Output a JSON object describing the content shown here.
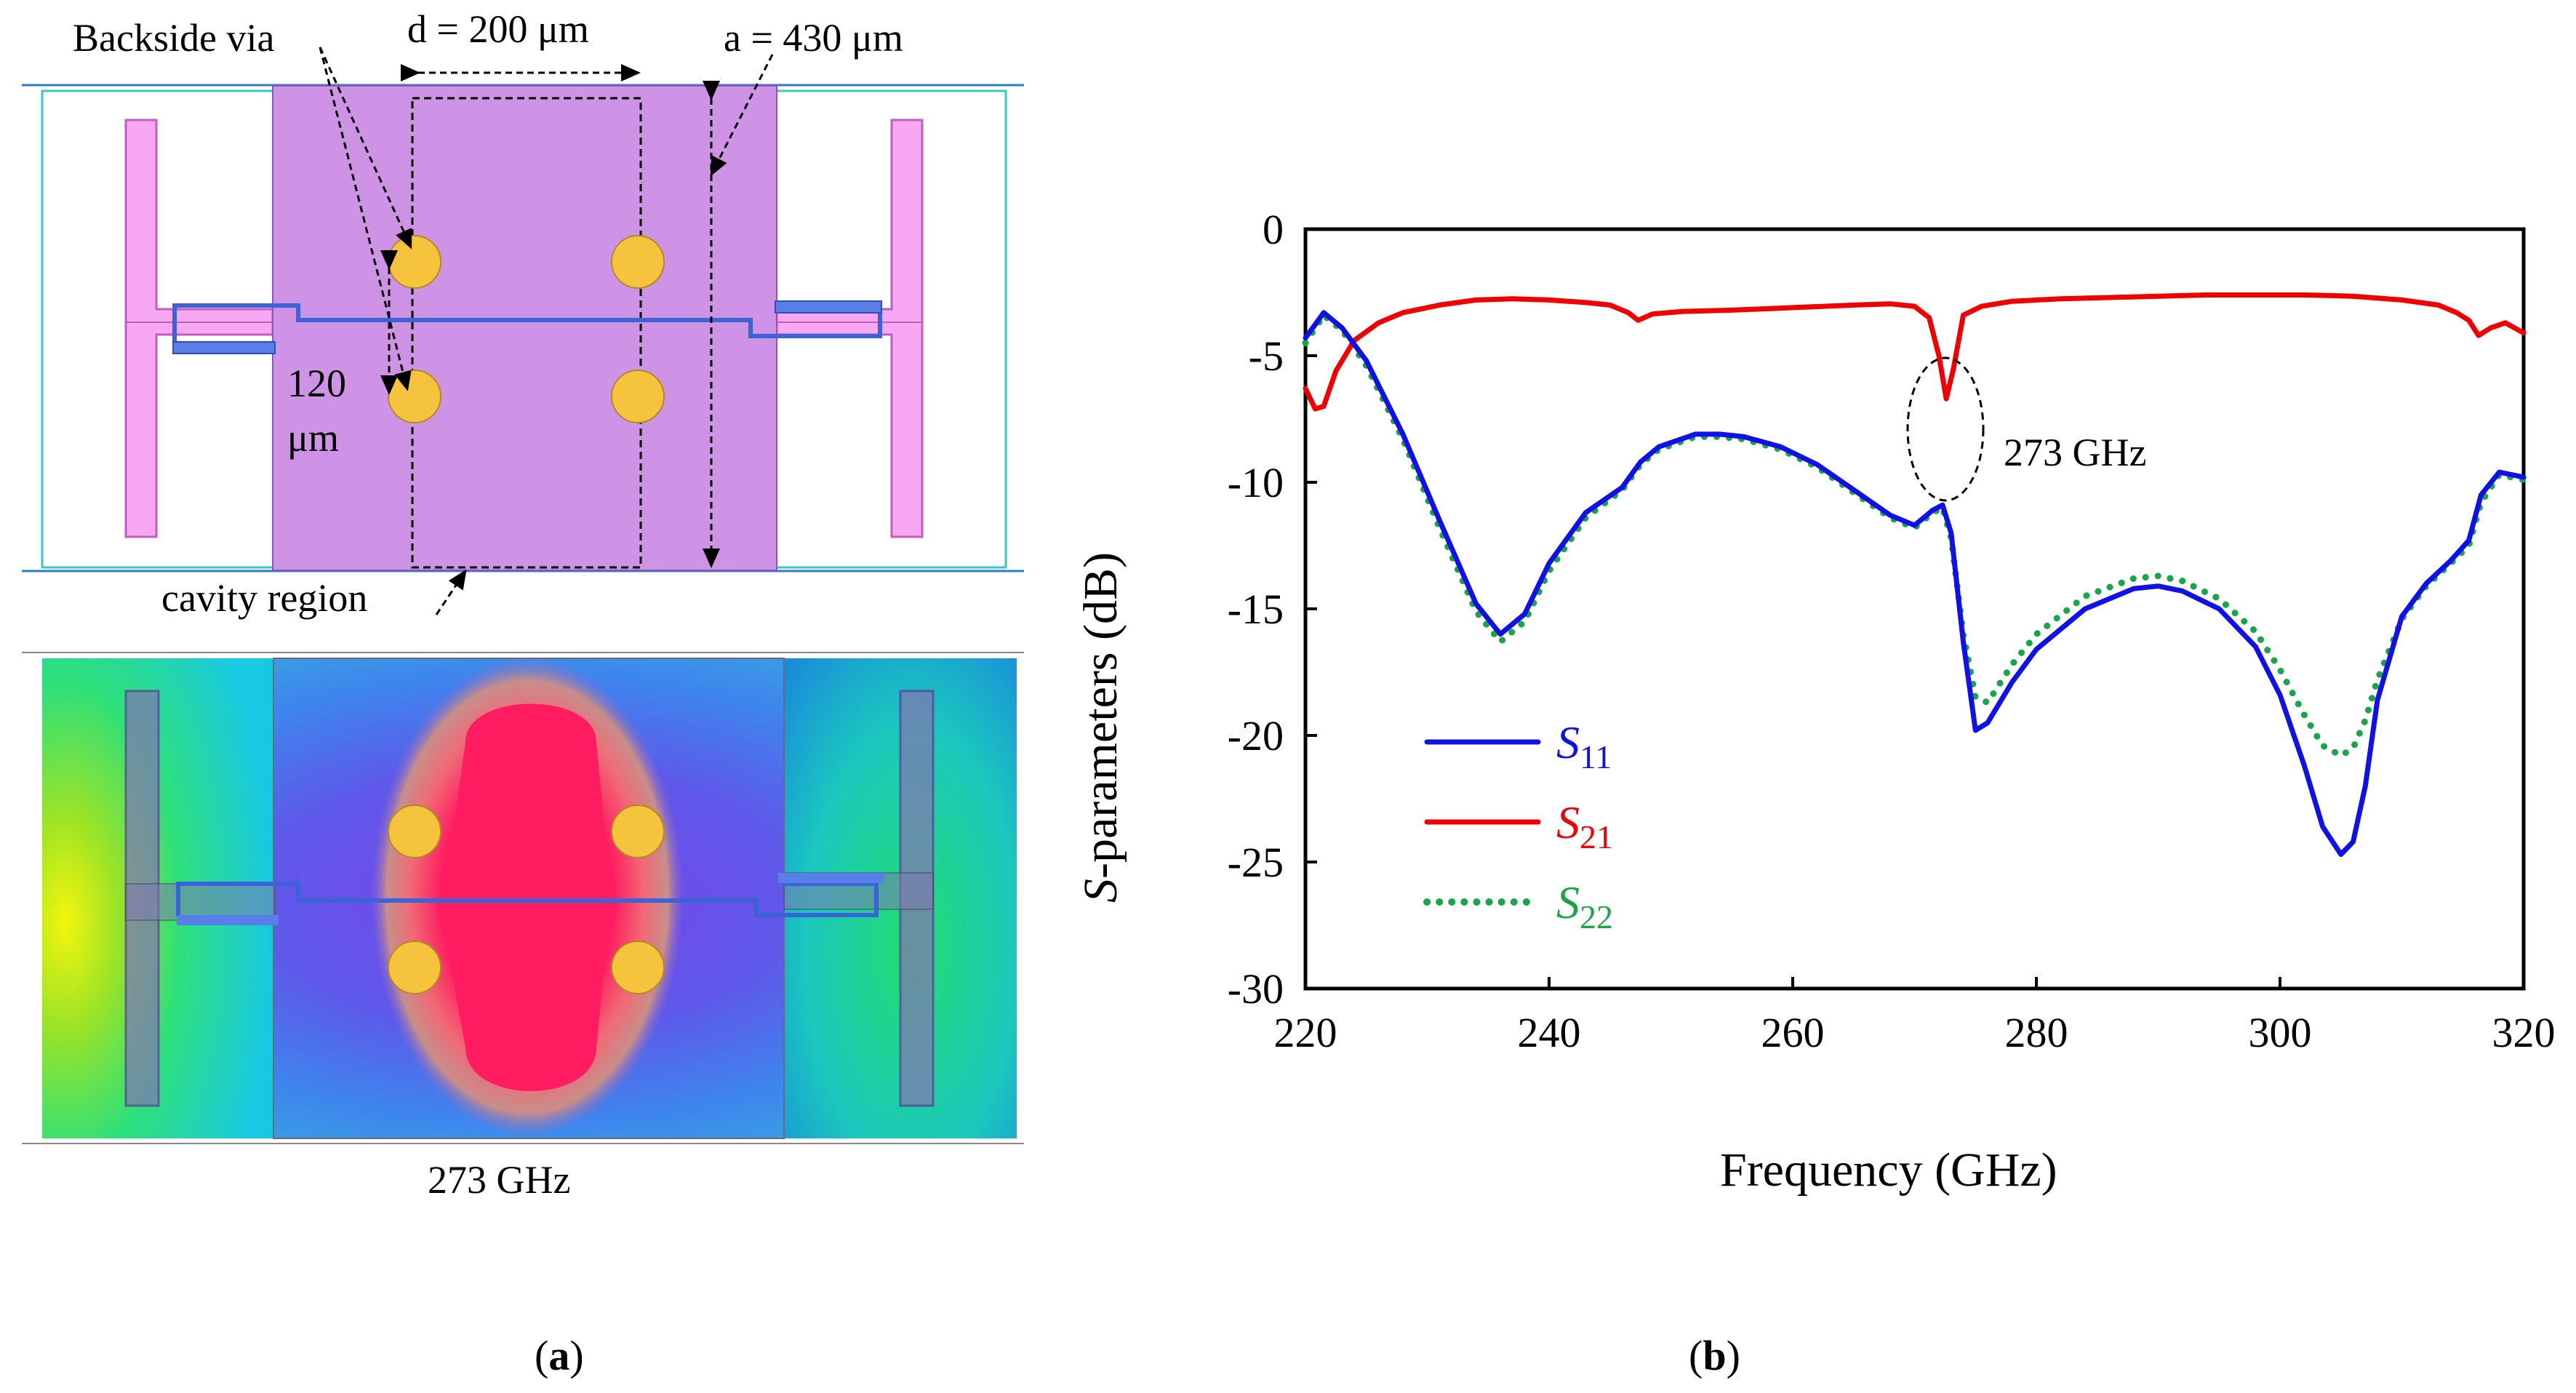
{
  "panel_a": {
    "label": "a",
    "annotations": {
      "backside_via": "Backside via",
      "d_dim": "d = 200 μm",
      "a_dim": "a = 430 μm",
      "via_spacing_value": "120",
      "via_spacing_unit": "μm",
      "cavity": "cavity region",
      "field_freq": "273 GHz"
    }
  },
  "panel_b": {
    "label": "b"
  },
  "chart_data": {
    "type": "line",
    "xlabel": "Frequency  (GHz)",
    "ylabel_italic": "S",
    "ylabel_rest": "-parameters (dB)",
    "xlim": [
      220,
      320
    ],
    "ylim": [
      -30,
      0
    ],
    "xticks": [
      220,
      240,
      260,
      280,
      300,
      320
    ],
    "yticks": [
      0,
      -5,
      -10,
      -15,
      -20,
      -25,
      -30
    ],
    "grid": false,
    "legend_position": "lower-left",
    "annotation": {
      "text": "273  GHz",
      "x": 272.8,
      "y": -7.5
    },
    "series": [
      {
        "name": "S11",
        "sym": "S",
        "sub": "11",
        "color": "#1010e8",
        "style": "solid",
        "x": [
          220,
          221.5,
          223,
          225,
          228,
          231,
          234,
          236,
          238,
          240,
          243,
          246,
          247.5,
          249,
          252,
          254,
          256,
          259,
          262,
          265,
          268,
          270,
          271.5,
          272.3,
          273,
          274,
          275,
          276,
          278,
          280,
          284,
          288,
          290,
          292,
          295,
          298,
          300,
          302,
          303.5,
          305,
          306,
          307,
          308,
          310,
          312,
          314,
          315.5,
          316.5,
          318,
          320
        ],
        "y": [
          -4.3,
          -3.3,
          -3.9,
          -5.2,
          -8.1,
          -11.5,
          -14.8,
          -16.0,
          -15.2,
          -13.2,
          -11.2,
          -10.2,
          -9.2,
          -8.6,
          -8.1,
          -8.1,
          -8.2,
          -8.6,
          -9.3,
          -10.3,
          -11.3,
          -11.7,
          -11.1,
          -10.9,
          -12.0,
          -16.3,
          -19.8,
          -19.5,
          -17.9,
          -16.6,
          -15.0,
          -14.2,
          -14.1,
          -14.3,
          -15.0,
          -16.5,
          -18.4,
          -21.2,
          -23.6,
          -24.7,
          -24.2,
          -22.0,
          -18.6,
          -15.3,
          -14.0,
          -13.1,
          -12.3,
          -10.5,
          -9.6,
          -9.8
        ]
      },
      {
        "name": "S21",
        "sym": "S",
        "sub": "21",
        "color": "#f00000",
        "style": "solid",
        "x": [
          220,
          220.8,
          221.5,
          222.5,
          224,
          226,
          228,
          231,
          234,
          237,
          240,
          243,
          245,
          246.5,
          247.3,
          248.5,
          251,
          255,
          260,
          265,
          268,
          270,
          271.2,
          272,
          272.6,
          273.2,
          274,
          275.5,
          278,
          282,
          286,
          290,
          294,
          298,
          302,
          306,
          310,
          313,
          314.5,
          315.5,
          316.3,
          317.3,
          318.5,
          320
        ],
        "y": [
          -6.3,
          -7.1,
          -7.0,
          -5.6,
          -4.4,
          -3.7,
          -3.3,
          -3.0,
          -2.8,
          -2.75,
          -2.8,
          -2.9,
          -3.0,
          -3.3,
          -3.6,
          -3.35,
          -3.25,
          -3.2,
          -3.1,
          -3.0,
          -2.95,
          -3.05,
          -3.5,
          -5.0,
          -6.7,
          -5.5,
          -3.4,
          -3.05,
          -2.85,
          -2.75,
          -2.7,
          -2.65,
          -2.6,
          -2.6,
          -2.6,
          -2.65,
          -2.8,
          -3.0,
          -3.3,
          -3.6,
          -4.2,
          -3.9,
          -3.7,
          -4.1
        ]
      },
      {
        "name": "S22",
        "sym": "S",
        "sub": "22",
        "color": "#19a64b",
        "style": "dotted",
        "x": [
          220,
          221.5,
          223,
          225,
          228,
          231,
          234,
          236,
          238,
          240,
          243,
          246,
          247.5,
          249,
          252,
          254,
          256,
          259,
          262,
          265,
          268,
          270,
          271.5,
          272.3,
          273,
          274,
          275,
          276,
          278,
          280,
          284,
          288,
          290,
          292,
          295,
          298,
          300,
          302,
          303.5,
          305,
          306,
          307,
          308,
          310,
          312,
          314,
          315.5,
          316.5,
          318,
          320
        ],
        "y": [
          -4.5,
          -3.4,
          -4.0,
          -5.4,
          -8.3,
          -11.8,
          -15.1,
          -16.3,
          -15.5,
          -13.5,
          -11.4,
          -10.3,
          -9.3,
          -8.7,
          -8.2,
          -8.2,
          -8.3,
          -8.7,
          -9.4,
          -10.4,
          -11.4,
          -11.8,
          -11.2,
          -11.0,
          -12.2,
          -16.0,
          -18.5,
          -18.7,
          -17.2,
          -16.0,
          -14.5,
          -13.8,
          -13.7,
          -13.9,
          -14.6,
          -15.9,
          -17.4,
          -19.2,
          -20.4,
          -20.8,
          -20.5,
          -19.4,
          -17.8,
          -15.4,
          -14.1,
          -13.2,
          -12.5,
          -10.8,
          -9.7,
          -9.9
        ]
      }
    ]
  }
}
